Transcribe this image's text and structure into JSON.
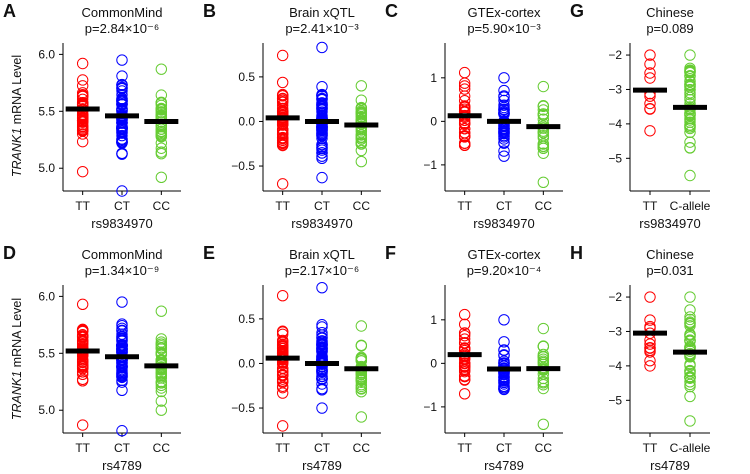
{
  "figure": {
    "ylabel_gene": "TRANK1",
    "ylabel_rest": " mRNA Level"
  },
  "chart_data": [
    {
      "type": "scatter",
      "letter": "A",
      "title": "CommonMind",
      "pvalue": "p=2.84×10⁻⁶",
      "xlabel": "rs9834970",
      "ylim": [
        4.8,
        6.1
      ],
      "yticks": [
        5.0,
        5.5,
        6.0
      ],
      "ytick_labels": [
        "5.0",
        "5.5",
        "6.0"
      ],
      "categories": [
        "TT",
        "CT",
        "CC"
      ],
      "colors": [
        "#ff0000",
        "#0000ff",
        "#66cc33"
      ],
      "means": [
        5.52,
        5.46,
        5.41
      ],
      "series": [
        {
          "name": "TT",
          "range": [
            4.97,
            5.92
          ],
          "n": 55,
          "center": 5.52,
          "spread": 0.16
        },
        {
          "name": "CT",
          "range": [
            4.8,
            5.95
          ],
          "n": 70,
          "center": 5.46,
          "spread": 0.18
        },
        {
          "name": "CC",
          "range": [
            4.92,
            5.87
          ],
          "n": 45,
          "center": 5.41,
          "spread": 0.15
        }
      ]
    },
    {
      "type": "scatter",
      "letter": "B",
      "title": "Brain xQTL",
      "pvalue": "p=2.41×10⁻³",
      "xlabel": "rs9834970",
      "ylim": [
        -0.78,
        0.88
      ],
      "yticks": [
        -0.5,
        0.0,
        0.5
      ],
      "ytick_labels": [
        "−0.5",
        "0.0",
        "0.5"
      ],
      "categories": [
        "TT",
        "CT",
        "CC"
      ],
      "colors": [
        "#ff0000",
        "#0000ff",
        "#66cc33"
      ],
      "means": [
        0.04,
        0.0,
        -0.04
      ],
      "series": [
        {
          "name": "TT",
          "range": [
            -0.7,
            0.74
          ],
          "n": 55,
          "center": 0.04,
          "spread": 0.2
        },
        {
          "name": "CT",
          "range": [
            -0.63,
            0.83
          ],
          "n": 70,
          "center": 0.0,
          "spread": 0.22
        },
        {
          "name": "CC",
          "range": [
            -0.45,
            0.4
          ],
          "n": 40,
          "center": -0.04,
          "spread": 0.16
        }
      ]
    },
    {
      "type": "scatter",
      "letter": "C",
      "title": "GTEx-cortex",
      "pvalue": "p=5.90×10⁻³",
      "xlabel": "rs9834970",
      "ylim": [
        -1.6,
        1.8
      ],
      "yticks": [
        -1,
        0,
        1
      ],
      "ytick_labels": [
        "−1",
        "0",
        "1"
      ],
      "categories": [
        "TT",
        "CT",
        "CC"
      ],
      "colors": [
        "#ff0000",
        "#0000ff",
        "#66cc33"
      ],
      "means": [
        0.13,
        0.0,
        -0.12
      ],
      "series": [
        {
          "name": "TT",
          "range": [
            -0.55,
            1.12
          ],
          "n": 35,
          "center": 0.13,
          "spread": 0.38
        },
        {
          "name": "CT",
          "range": [
            -0.8,
            1.0
          ],
          "n": 40,
          "center": 0.0,
          "spread": 0.38
        },
        {
          "name": "CC",
          "range": [
            -1.4,
            0.8
          ],
          "n": 25,
          "center": -0.12,
          "spread": 0.42
        }
      ]
    },
    {
      "type": "scatter",
      "letter": "G",
      "title": "Chinese",
      "pvalue": "p=0.089",
      "xlabel": "rs9834970",
      "ylim": [
        -5.95,
        -1.65
      ],
      "yticks": [
        -5,
        -4,
        -3,
        -2
      ],
      "ytick_labels": [
        "−5",
        "−4",
        "−3",
        "−2"
      ],
      "categories": [
        "TT",
        "C-allele"
      ],
      "colors": [
        "#ff0000",
        "#66cc33"
      ],
      "means": [
        -3.02,
        -3.52
      ],
      "series": [
        {
          "name": "TT",
          "range": [
            -4.2,
            -2.0
          ],
          "n": 10,
          "center": -3.02,
          "spread": 0.65
        },
        {
          "name": "C-allele",
          "range": [
            -5.5,
            -2.0
          ],
          "n": 45,
          "center": -3.52,
          "spread": 0.8
        }
      ]
    },
    {
      "type": "scatter",
      "letter": "D",
      "title": "CommonMind",
      "pvalue": "p=1.34×10⁻⁹",
      "xlabel": "rs4789",
      "ylim": [
        4.8,
        6.1
      ],
      "yticks": [
        5.0,
        5.5,
        6.0
      ],
      "ytick_labels": [
        "5.0",
        "5.5",
        "6.0"
      ],
      "categories": [
        "TT",
        "CT",
        "CC"
      ],
      "colors": [
        "#ff0000",
        "#0000ff",
        "#66cc33"
      ],
      "means": [
        5.52,
        5.47,
        5.39
      ],
      "series": [
        {
          "name": "TT",
          "range": [
            4.87,
            5.93
          ],
          "n": 55,
          "center": 5.52,
          "spread": 0.16
        },
        {
          "name": "CT",
          "range": [
            4.82,
            5.95
          ],
          "n": 70,
          "center": 5.47,
          "spread": 0.18
        },
        {
          "name": "CC",
          "range": [
            5.0,
            5.87
          ],
          "n": 45,
          "center": 5.39,
          "spread": 0.15
        }
      ]
    },
    {
      "type": "scatter",
      "letter": "E",
      "title": "Brain xQTL",
      "pvalue": "p=2.17×10⁻⁶",
      "xlabel": "rs4789",
      "ylim": [
        -0.78,
        0.88
      ],
      "yticks": [
        -0.5,
        0.0,
        0.5
      ],
      "ytick_labels": [
        "−0.5",
        "0.0",
        "0.5"
      ],
      "categories": [
        "TT",
        "CT",
        "CC"
      ],
      "colors": [
        "#ff0000",
        "#0000ff",
        "#66cc33"
      ],
      "means": [
        0.06,
        0.0,
        -0.06
      ],
      "series": [
        {
          "name": "TT",
          "range": [
            -0.7,
            0.76
          ],
          "n": 55,
          "center": 0.06,
          "spread": 0.2
        },
        {
          "name": "CT",
          "range": [
            -0.5,
            0.85
          ],
          "n": 70,
          "center": 0.0,
          "spread": 0.22
        },
        {
          "name": "CC",
          "range": [
            -0.6,
            0.42
          ],
          "n": 40,
          "center": -0.06,
          "spread": 0.16
        }
      ]
    },
    {
      "type": "scatter",
      "letter": "F",
      "title": "GTEx-cortex",
      "pvalue": "p=9.20×10⁻⁴",
      "xlabel": "rs4789",
      "ylim": [
        -1.6,
        1.8
      ],
      "yticks": [
        -1,
        0,
        1
      ],
      "ytick_labels": [
        "−1",
        "0",
        "1"
      ],
      "categories": [
        "TT",
        "CT",
        "CC"
      ],
      "colors": [
        "#ff0000",
        "#0000ff",
        "#66cc33"
      ],
      "means": [
        0.2,
        -0.13,
        -0.12
      ],
      "series": [
        {
          "name": "TT",
          "range": [
            -0.7,
            1.12
          ],
          "n": 35,
          "center": 0.2,
          "spread": 0.38
        },
        {
          "name": "CT",
          "range": [
            -0.6,
            1.0
          ],
          "n": 40,
          "center": -0.13,
          "spread": 0.36
        },
        {
          "name": "CC",
          "range": [
            -1.4,
            0.8
          ],
          "n": 25,
          "center": -0.12,
          "spread": 0.42
        }
      ]
    },
    {
      "type": "scatter",
      "letter": "H",
      "title": "Chinese",
      "pvalue": "p=0.031",
      "xlabel": "rs4789",
      "ylim": [
        -5.95,
        -1.65
      ],
      "yticks": [
        -5,
        -4,
        -3,
        -2
      ],
      "ytick_labels": [
        "−5",
        "−4",
        "−3",
        "−2"
      ],
      "categories": [
        "TT",
        "C-allele"
      ],
      "colors": [
        "#ff0000",
        "#66cc33"
      ],
      "means": [
        -3.05,
        -3.6
      ],
      "series": [
        {
          "name": "TT",
          "range": [
            -4.0,
            -2.0
          ],
          "n": 13,
          "center": -3.05,
          "spread": 0.6
        },
        {
          "name": "C-allele",
          "range": [
            -5.6,
            -2.0
          ],
          "n": 45,
          "center": -3.6,
          "spread": 0.8
        }
      ]
    }
  ]
}
